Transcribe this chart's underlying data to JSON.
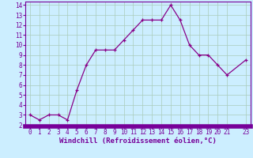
{
  "x": [
    0,
    1,
    2,
    3,
    4,
    5,
    6,
    7,
    8,
    9,
    10,
    11,
    12,
    13,
    14,
    15,
    16,
    17,
    18,
    19,
    20,
    21,
    23
  ],
  "y": [
    3.0,
    2.5,
    3.0,
    3.0,
    2.5,
    5.5,
    8.0,
    9.5,
    9.5,
    9.5,
    10.5,
    11.5,
    12.5,
    12.5,
    12.5,
    14.0,
    12.5,
    10.0,
    9.0,
    9.0,
    8.0,
    7.0,
    8.5
  ],
  "line_color": "#880088",
  "marker_color": "#880088",
  "bg_color": "#cceeff",
  "grid_color": "#aaccbb",
  "xlabel": "Windchill (Refroidissement éolien,°C)",
  "xlim_min": -0.5,
  "xlim_max": 23.5,
  "ylim_min": 1.85,
  "ylim_max": 14.35,
  "xticks": [
    0,
    1,
    2,
    3,
    4,
    5,
    6,
    7,
    8,
    9,
    10,
    11,
    12,
    13,
    14,
    15,
    16,
    17,
    18,
    19,
    20,
    21,
    23
  ],
  "yticks": [
    2,
    3,
    4,
    5,
    6,
    7,
    8,
    9,
    10,
    11,
    12,
    13,
    14
  ],
  "xlabel_fontsize": 6.5,
  "tick_fontsize": 5.5,
  "border_color": "#770099",
  "bottom_bar_color": "#770099",
  "bottom_bar_lw": 4
}
